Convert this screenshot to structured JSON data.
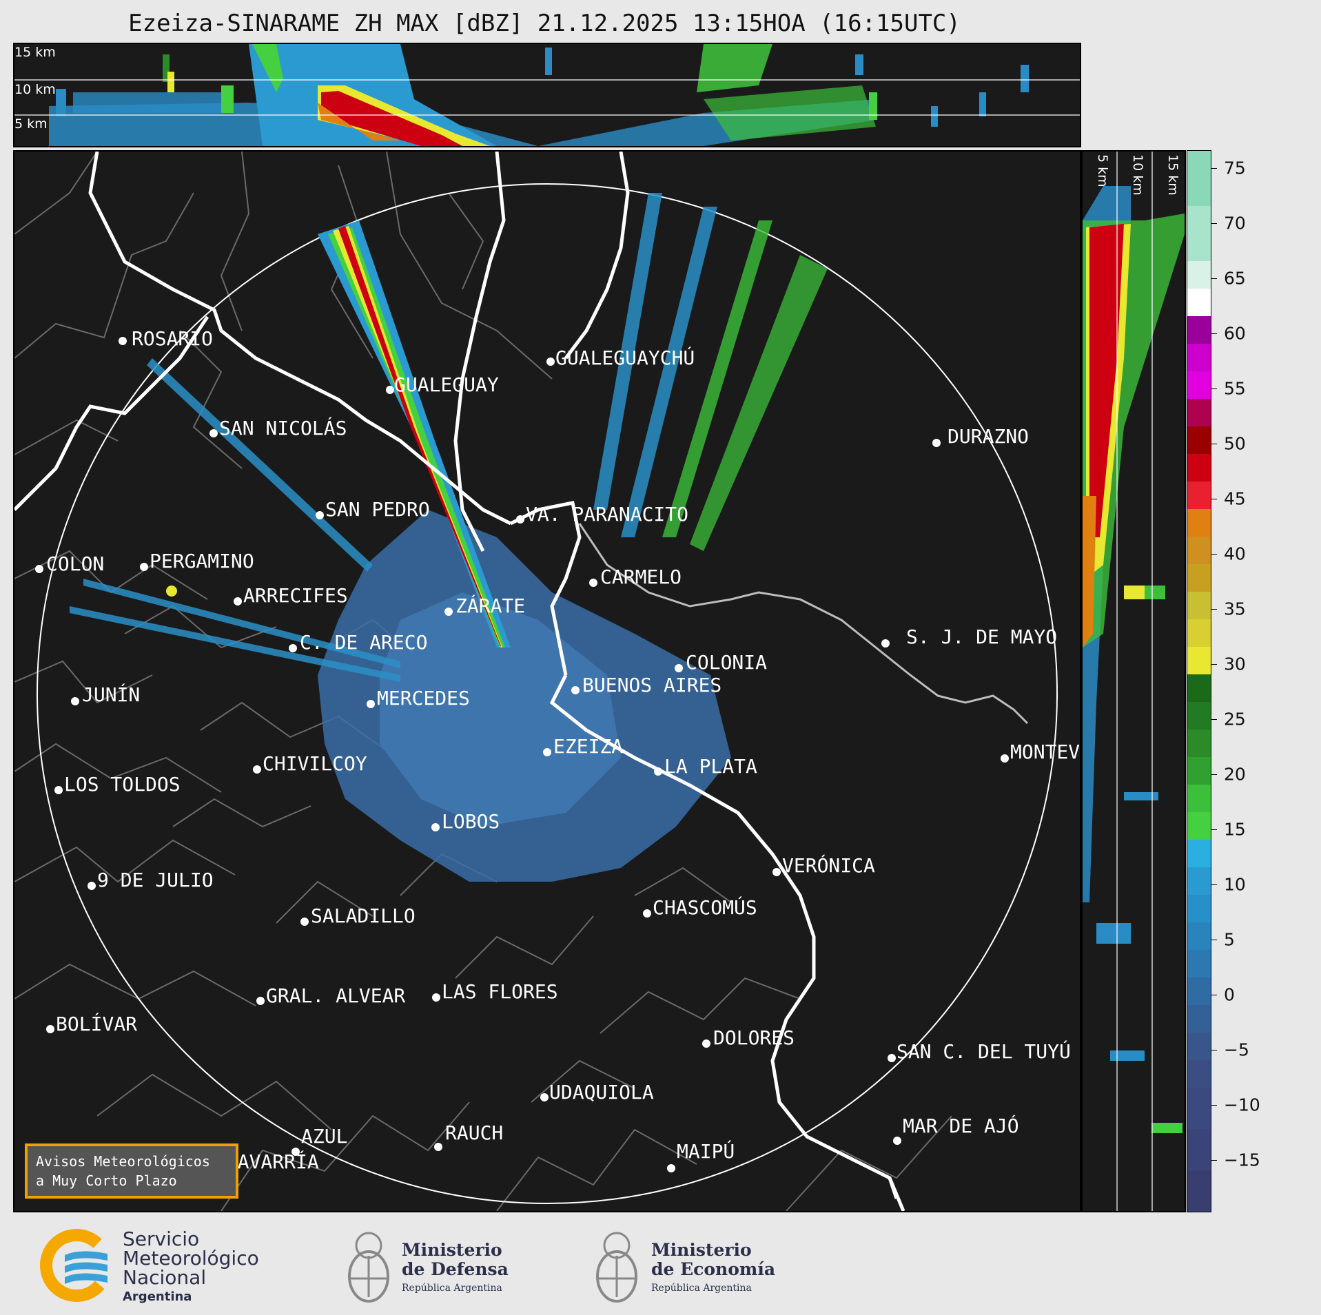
{
  "title": "Ezeiza-SINARAME ZH MAX [dBZ] 21.12.2025 13:15HOA (16:15UTC)",
  "top_panel": {
    "altitudes": [
      "15 km",
      "10 km",
      "5 km"
    ]
  },
  "side_panel": {
    "altitudes": [
      "5 km",
      "10 km",
      "15 km"
    ]
  },
  "colorbar": {
    "ticks": [
      "75",
      "70",
      "65",
      "60",
      "55",
      "50",
      "45",
      "40",
      "35",
      "30",
      "25",
      "20",
      "15",
      "10",
      "5",
      "0",
      "−5",
      "−10",
      "−15"
    ],
    "colors": {
      "very_high": "#8ad8b8",
      "white_band": "#ffffff",
      "magenta": "#cc00cc",
      "red": "#cc0010",
      "orange": "#e08010",
      "yellow": "#e8e830",
      "green": "#30a030",
      "blue": "#2890c8",
      "dark_blue": "#3a4a80"
    }
  },
  "cities": [
    {
      "name": "ROSARIO"
    },
    {
      "name": "GUALEGUAYCHÚ"
    },
    {
      "name": "GUALEGUAY"
    },
    {
      "name": "SAN NICOLÁS"
    },
    {
      "name": "DURAZNO"
    },
    {
      "name": "SAN PEDRO"
    },
    {
      "name": "VA. PARANACITO"
    },
    {
      "name": "COLON"
    },
    {
      "name": "PERGAMINO"
    },
    {
      "name": "ARRECIFES"
    },
    {
      "name": "CARMELO"
    },
    {
      "name": "ZÁRATE"
    },
    {
      "name": "S. J. DE MAYO"
    },
    {
      "name": "C. DE ARECO"
    },
    {
      "name": "COLONIA"
    },
    {
      "name": "JUNÍN"
    },
    {
      "name": "BUENOS AIRES"
    },
    {
      "name": "MERCEDES"
    },
    {
      "name": "MONTEVIDEO"
    },
    {
      "name": "EZEIZA"
    },
    {
      "name": "CHIVILCOY"
    },
    {
      "name": "LA PLATA"
    },
    {
      "name": "LOS TOLDOS"
    },
    {
      "name": "LOBOS"
    },
    {
      "name": "VERÓNICA"
    },
    {
      "name": "9 DE JULIO"
    },
    {
      "name": "CHASCOMÚS"
    },
    {
      "name": "SALADILLO"
    },
    {
      "name": "GRAL. ALVEAR"
    },
    {
      "name": "LAS FLORES"
    },
    {
      "name": "BOLÍVAR"
    },
    {
      "name": "DOLORES"
    },
    {
      "name": "SAN C. DEL TUYÚ"
    },
    {
      "name": "UDAQUIOLA"
    },
    {
      "name": "AZUL"
    },
    {
      "name": "RAUCH"
    },
    {
      "name": "MAR DE AJÓ"
    },
    {
      "name": "MAIPÚ"
    },
    {
      "name": "OLAVARRÍA"
    }
  ],
  "avisos": {
    "line1": "Avisos Meteorológicos",
    "line2": "a Muy Corto Plazo"
  },
  "footer": {
    "smn": {
      "line1": "Servicio",
      "line2": "Meteorológico",
      "line3": "Nacional",
      "line4": "Argentina"
    },
    "defensa": {
      "line1": "Ministerio",
      "line2": "de Defensa",
      "line3": "República Argentina"
    },
    "economia": {
      "line1": "Ministerio",
      "line2": "de Economía",
      "line3": "República Argentina"
    }
  }
}
